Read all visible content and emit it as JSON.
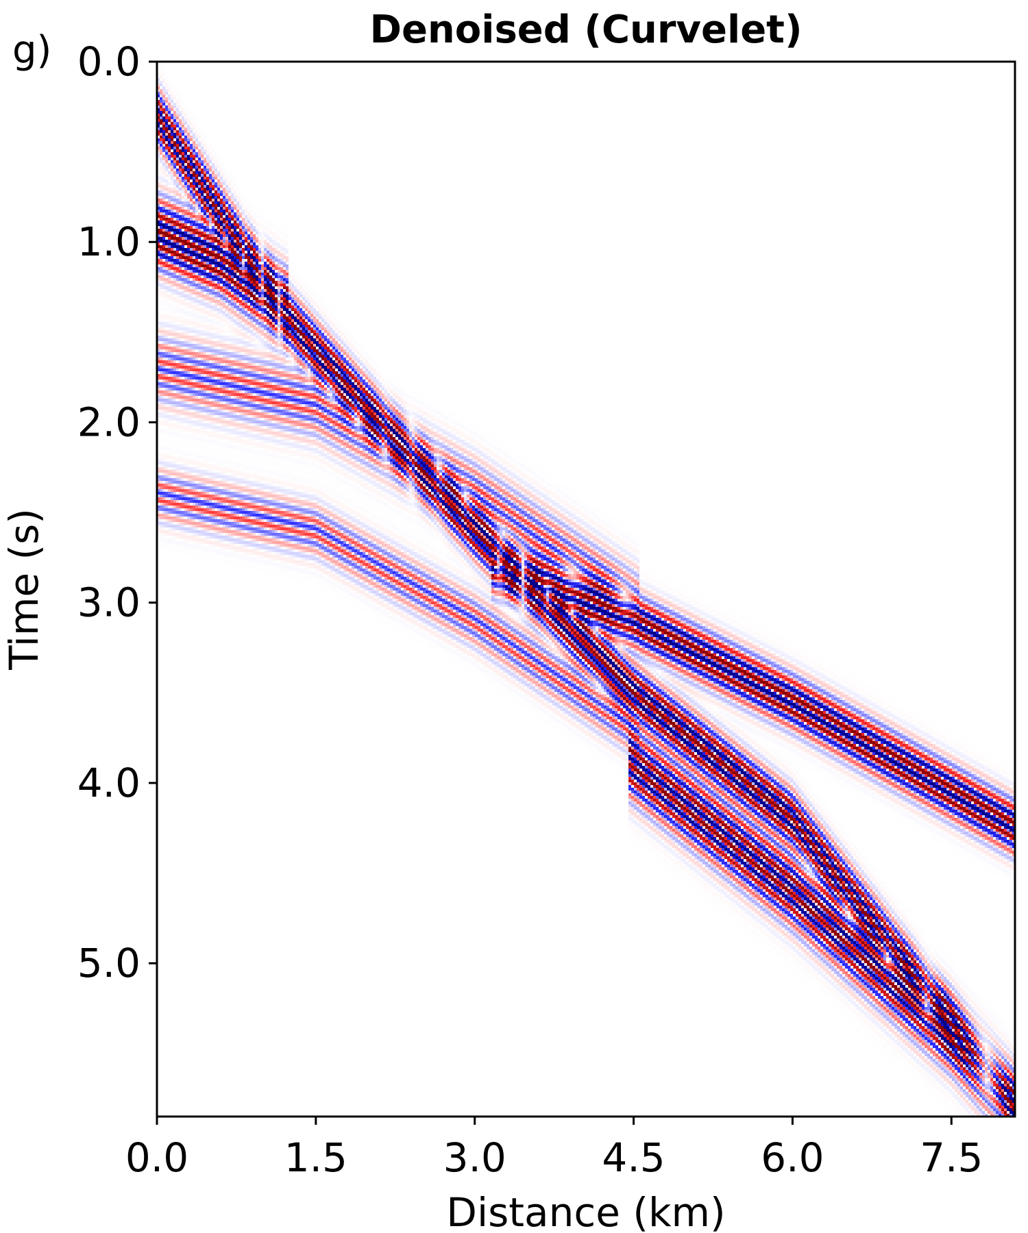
{
  "panel_label": "g)",
  "chart_data": {
    "type": "heatmap",
    "title": "Denoised (Curvelet)",
    "xlabel": "Distance (km)",
    "ylabel": "Time (s)",
    "xlim": [
      0.0,
      8.1
    ],
    "ylim": [
      5.85,
      0.0
    ],
    "xticks": [
      0.0,
      1.5,
      3.0,
      4.5,
      6.0,
      7.5
    ],
    "xtick_labels": [
      "0.0",
      "1.5",
      "3.0",
      "4.5",
      "6.0",
      "7.5"
    ],
    "yticks": [
      0.0,
      1.0,
      2.0,
      3.0,
      4.0,
      5.0
    ],
    "ytick_labels": [
      "0.0",
      "1.0",
      "2.0",
      "3.0",
      "4.0",
      "5.0"
    ],
    "colormap": "seismic (blue-white-red)",
    "colors": {
      "negative": "#00008b",
      "mid_negative": "#2a2aff",
      "zero": "#ffffff",
      "mid_positive": "#ff2a2a",
      "positive": "#8b0000"
    },
    "grid": false,
    "description_events": [
      {
        "name": "direct arrival",
        "x": [
          0.0,
          1.2,
          3.0,
          4.5,
          6.0,
          8.1
        ],
        "t": [
          0.3,
          1.4,
          2.6,
          3.5,
          4.2,
          5.8
        ],
        "strength": 1.0
      },
      {
        "name": "shallow event",
        "x": [
          0.0,
          0.6,
          1.2
        ],
        "t": [
          0.95,
          1.1,
          1.35
        ],
        "strength": 0.9
      },
      {
        "name": "refraction branch",
        "x": [
          3.2,
          4.5,
          6.0,
          8.1
        ],
        "t": [
          2.8,
          3.1,
          3.55,
          4.25
        ],
        "strength": 0.9
      },
      {
        "name": "hyperbola 1",
        "x": [
          0.0,
          1.5,
          3.0,
          4.5
        ],
        "t": [
          1.7,
          1.9,
          2.4,
          3.0
        ],
        "strength": 0.35
      },
      {
        "name": "hyperbola 2",
        "x": [
          0.0,
          1.5,
          3.0,
          4.5
        ],
        "t": [
          2.4,
          2.6,
          3.1,
          3.7
        ],
        "strength": 0.35
      },
      {
        "name": "deep branch",
        "x": [
          4.5,
          6.0,
          7.5,
          8.1
        ],
        "t": [
          3.9,
          4.6,
          5.4,
          5.8
        ],
        "strength": 0.85
      }
    ]
  }
}
